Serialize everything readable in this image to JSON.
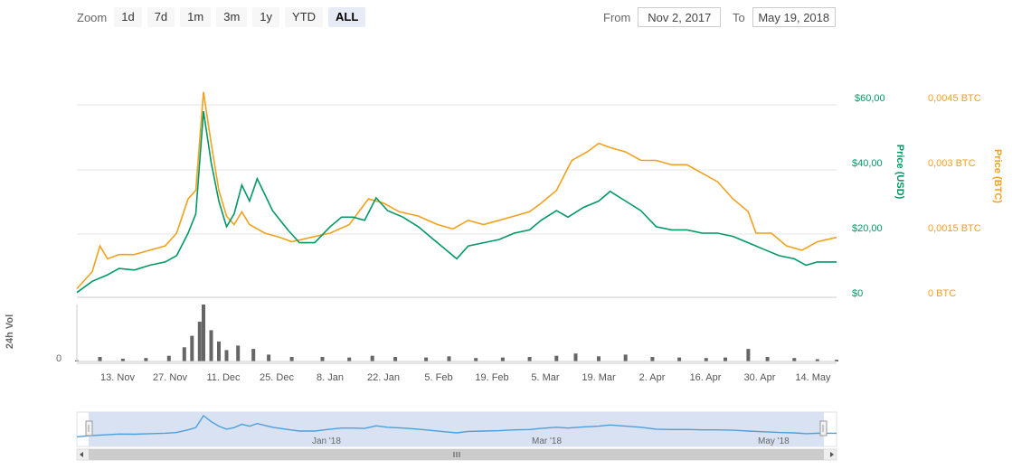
{
  "toolbar": {
    "zoom_label": "Zoom",
    "zoom_buttons": [
      "1d",
      "7d",
      "1m",
      "3m",
      "1y",
      "YTD",
      "ALL"
    ],
    "active_zoom": "ALL",
    "from_label": "From",
    "from_value": "Nov 2, 2017",
    "to_label": "To",
    "to_value": "May 19, 2018"
  },
  "colors": {
    "usd": "#009966",
    "btc": "#f2a11c",
    "volume": "#666666",
    "navigator_line": "#4d9fdc",
    "navigator_mask": "#d9e2f2"
  },
  "chart_data": {
    "type": "line",
    "x_range": [
      "2017-11-02",
      "2018-05-19"
    ],
    "x_ticks": [
      "13. Nov",
      "27. Nov",
      "11. Dec",
      "25. Dec",
      "8. Jan",
      "22. Jan",
      "5. Feb",
      "19. Feb",
      "5. Mar",
      "19. Mar",
      "2. Apr",
      "16. Apr",
      "30. Apr",
      "14. May"
    ],
    "y_usd": {
      "label": "Price (USD)",
      "ticks": [
        "$0",
        "$20,00",
        "$40,00",
        "$60,00"
      ],
      "range": [
        0,
        60
      ]
    },
    "y_btc": {
      "label": "Price (BTC)",
      "ticks": [
        "0 BTC",
        "0,0015 BTC",
        "0,003 BTC",
        "0,0045 BTC"
      ],
      "range": [
        0,
        0.0045
      ]
    },
    "y_volume": {
      "label": "24h Vol",
      "ticks": [
        "0"
      ]
    },
    "series": [
      {
        "name": "Price (USD)",
        "axis": "usd",
        "points": [
          [
            "2017-11-02",
            1.5
          ],
          [
            "2017-11-06",
            5
          ],
          [
            "2017-11-10",
            7
          ],
          [
            "2017-11-13",
            9
          ],
          [
            "2017-11-17",
            8.5
          ],
          [
            "2017-11-21",
            10
          ],
          [
            "2017-11-25",
            11
          ],
          [
            "2017-11-28",
            13
          ],
          [
            "2017-12-01",
            20
          ],
          [
            "2017-12-03",
            26
          ],
          [
            "2017-12-05",
            58
          ],
          [
            "2017-12-07",
            42
          ],
          [
            "2017-12-09",
            30
          ],
          [
            "2017-12-11",
            22
          ],
          [
            "2017-12-13",
            26
          ],
          [
            "2017-12-15",
            35
          ],
          [
            "2017-12-17",
            30
          ],
          [
            "2017-12-19",
            37
          ],
          [
            "2017-12-21",
            32
          ],
          [
            "2017-12-23",
            27
          ],
          [
            "2017-12-25",
            24
          ],
          [
            "2017-12-27",
            21
          ],
          [
            "2017-12-30",
            17
          ],
          [
            "2018-01-03",
            17
          ],
          [
            "2018-01-07",
            22
          ],
          [
            "2018-01-10",
            25
          ],
          [
            "2018-01-13",
            25
          ],
          [
            "2018-01-16",
            24
          ],
          [
            "2018-01-19",
            31
          ],
          [
            "2018-01-22",
            27
          ],
          [
            "2018-01-26",
            25
          ],
          [
            "2018-01-30",
            22
          ],
          [
            "2018-02-03",
            18
          ],
          [
            "2018-02-06",
            15
          ],
          [
            "2018-02-09",
            12
          ],
          [
            "2018-02-12",
            16
          ],
          [
            "2018-02-16",
            17
          ],
          [
            "2018-02-20",
            18
          ],
          [
            "2018-02-24",
            20
          ],
          [
            "2018-02-28",
            21
          ],
          [
            "2018-03-03",
            24
          ],
          [
            "2018-03-07",
            27
          ],
          [
            "2018-03-10",
            25
          ],
          [
            "2018-03-14",
            28
          ],
          [
            "2018-03-18",
            30
          ],
          [
            "2018-03-21",
            33
          ],
          [
            "2018-03-25",
            30
          ],
          [
            "2018-03-29",
            27
          ],
          [
            "2018-04-02",
            22
          ],
          [
            "2018-04-06",
            21
          ],
          [
            "2018-04-10",
            21
          ],
          [
            "2018-04-14",
            20
          ],
          [
            "2018-04-18",
            20
          ],
          [
            "2018-04-22",
            19
          ],
          [
            "2018-04-26",
            17
          ],
          [
            "2018-04-30",
            15
          ],
          [
            "2018-05-04",
            13
          ],
          [
            "2018-05-08",
            12
          ],
          [
            "2018-05-11",
            10
          ],
          [
            "2018-05-14",
            11
          ],
          [
            "2018-05-19",
            11
          ]
        ]
      },
      {
        "name": "Price (BTC)",
        "axis": "btc",
        "points": [
          [
            "2017-11-02",
            0.0002
          ],
          [
            "2017-11-06",
            0.0006
          ],
          [
            "2017-11-08",
            0.0012
          ],
          [
            "2017-11-10",
            0.0009
          ],
          [
            "2017-11-13",
            0.001
          ],
          [
            "2017-11-17",
            0.001
          ],
          [
            "2017-11-21",
            0.0011
          ],
          [
            "2017-11-25",
            0.0012
          ],
          [
            "2017-11-28",
            0.0015
          ],
          [
            "2017-12-01",
            0.0023
          ],
          [
            "2017-12-03",
            0.0025
          ],
          [
            "2017-12-05",
            0.0048
          ],
          [
            "2017-12-07",
            0.0036
          ],
          [
            "2017-12-09",
            0.0025
          ],
          [
            "2017-12-11",
            0.0019
          ],
          [
            "2017-12-13",
            0.0017
          ],
          [
            "2017-12-15",
            0.002
          ],
          [
            "2017-12-17",
            0.0017
          ],
          [
            "2017-12-21",
            0.0015
          ],
          [
            "2017-12-25",
            0.0014
          ],
          [
            "2017-12-28",
            0.0013
          ],
          [
            "2018-01-02",
            0.0014
          ],
          [
            "2018-01-07",
            0.0015
          ],
          [
            "2018-01-12",
            0.0017
          ],
          [
            "2018-01-17",
            0.0023
          ],
          [
            "2018-01-21",
            0.0022
          ],
          [
            "2018-01-25",
            0.002
          ],
          [
            "2018-01-30",
            0.0019
          ],
          [
            "2018-02-04",
            0.0017
          ],
          [
            "2018-02-08",
            0.0016
          ],
          [
            "2018-02-12",
            0.0018
          ],
          [
            "2018-02-16",
            0.0017
          ],
          [
            "2018-02-20",
            0.0018
          ],
          [
            "2018-02-24",
            0.0019
          ],
          [
            "2018-02-28",
            0.002
          ],
          [
            "2018-03-03",
            0.0022
          ],
          [
            "2018-03-07",
            0.0025
          ],
          [
            "2018-03-11",
            0.0032
          ],
          [
            "2018-03-15",
            0.0034
          ],
          [
            "2018-03-18",
            0.0036
          ],
          [
            "2018-03-21",
            0.0035
          ],
          [
            "2018-03-25",
            0.0034
          ],
          [
            "2018-03-29",
            0.0032
          ],
          [
            "2018-04-02",
            0.0032
          ],
          [
            "2018-04-06",
            0.0031
          ],
          [
            "2018-04-10",
            0.0031
          ],
          [
            "2018-04-14",
            0.0029
          ],
          [
            "2018-04-18",
            0.0027
          ],
          [
            "2018-04-22",
            0.0023
          ],
          [
            "2018-04-26",
            0.002
          ],
          [
            "2018-04-28",
            0.0015
          ],
          [
            "2018-05-02",
            0.0015
          ],
          [
            "2018-05-06",
            0.0012
          ],
          [
            "2018-05-10",
            0.0011
          ],
          [
            "2018-05-14",
            0.0013
          ],
          [
            "2018-05-19",
            0.0014
          ]
        ]
      },
      {
        "name": "24h Vol",
        "axis": "volume",
        "type": "column",
        "points": [
          [
            "2017-11-02",
            2
          ],
          [
            "2017-11-08",
            8
          ],
          [
            "2017-11-14",
            5
          ],
          [
            "2017-11-20",
            6
          ],
          [
            "2017-11-26",
            10
          ],
          [
            "2017-11-30",
            25
          ],
          [
            "2017-12-02",
            45
          ],
          [
            "2017-12-04",
            70
          ],
          [
            "2017-12-05",
            100
          ],
          [
            "2017-12-07",
            55
          ],
          [
            "2017-12-09",
            35
          ],
          [
            "2017-12-11",
            20
          ],
          [
            "2017-12-14",
            28
          ],
          [
            "2017-12-18",
            22
          ],
          [
            "2017-12-22",
            12
          ],
          [
            "2017-12-28",
            8
          ],
          [
            "2018-01-05",
            8
          ],
          [
            "2018-01-12",
            7
          ],
          [
            "2018-01-18",
            10
          ],
          [
            "2018-01-24",
            8
          ],
          [
            "2018-02-01",
            7
          ],
          [
            "2018-02-07",
            9
          ],
          [
            "2018-02-14",
            6
          ],
          [
            "2018-02-21",
            7
          ],
          [
            "2018-02-28",
            8
          ],
          [
            "2018-03-07",
            10
          ],
          [
            "2018-03-12",
            14
          ],
          [
            "2018-03-18",
            9
          ],
          [
            "2018-03-25",
            12
          ],
          [
            "2018-04-01",
            8
          ],
          [
            "2018-04-08",
            7
          ],
          [
            "2018-04-15",
            6
          ],
          [
            "2018-04-20",
            7
          ],
          [
            "2018-04-26",
            22
          ],
          [
            "2018-05-01",
            8
          ],
          [
            "2018-05-08",
            6
          ],
          [
            "2018-05-14",
            4
          ],
          [
            "2018-05-19",
            3
          ]
        ]
      }
    ],
    "navigator": {
      "labels": [
        "Jan '18",
        "Mar '18",
        "May '18"
      ]
    },
    "grid": true,
    "legend": "none"
  }
}
